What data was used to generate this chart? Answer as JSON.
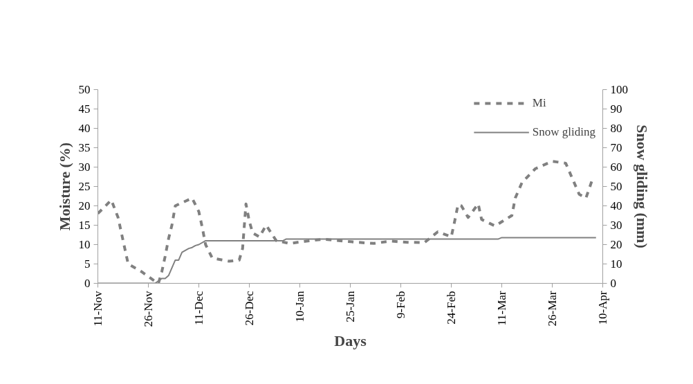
{
  "chart_data": {
    "type": "line",
    "xlabel": "Days",
    "ylabel": "Moisture (%)",
    "y2label": "Snow gliding (mm)",
    "categories": [
      "11-Nov",
      null,
      null,
      null,
      null,
      null,
      null,
      null,
      null,
      null,
      null,
      null,
      null,
      null,
      null,
      "26-Nov",
      null,
      null,
      null,
      null,
      null,
      null,
      null,
      null,
      null,
      null,
      null,
      null,
      null,
      null,
      "11-Dec",
      null,
      null,
      null,
      null,
      null,
      null,
      null,
      null,
      null,
      null,
      null,
      null,
      null,
      null,
      "26-Dec",
      null,
      null,
      null,
      null,
      null,
      null,
      null,
      null,
      null,
      null,
      null,
      null,
      null,
      null,
      "10-Jan",
      null,
      null,
      null,
      null,
      null,
      null,
      null,
      null,
      null,
      null,
      null,
      null,
      null,
      null,
      "25-Jan",
      null,
      null,
      null,
      null,
      null,
      null,
      null,
      null,
      null,
      null,
      null,
      null,
      null,
      null,
      "9-Feb",
      null,
      null,
      null,
      null,
      null,
      null,
      null,
      null,
      null,
      null,
      null,
      null,
      null,
      null,
      "24-Feb",
      null,
      null,
      null,
      null,
      null,
      null,
      null,
      null,
      null,
      null,
      null,
      null,
      null,
      null,
      "11-Mar",
      null,
      null,
      null,
      null,
      null,
      null,
      null,
      null,
      null,
      null,
      null,
      null,
      null,
      null,
      "26-Mar",
      null,
      null,
      null,
      null,
      null,
      null,
      null,
      null,
      null,
      null,
      null,
      null,
      null,
      null,
      "10-Apr"
    ],
    "ylim": [
      0,
      50
    ],
    "yticks": [
      0,
      5,
      10,
      15,
      20,
      25,
      30,
      35,
      40,
      45,
      50
    ],
    "y2lim": [
      0,
      100
    ],
    "y2ticks": [
      0,
      10,
      20,
      30,
      40,
      50,
      60,
      70,
      80,
      90,
      100
    ],
    "legend": "top right",
    "series": [
      {
        "name": "Mi",
        "color": "#808080",
        "line_style": "dashed",
        "values": [
          18,
          null,
          null,
          null,
          21.5,
          null,
          17,
          13,
          9,
          5,
          null,
          null,
          null,
          3,
          null,
          null,
          null,
          0.5,
          0,
          3,
          7,
          11.5,
          15,
          20,
          null,
          null,
          null,
          null,
          22,
          null,
          18.5,
          14.5,
          10,
          null,
          6.5,
          null,
          null,
          null,
          null,
          5.7,
          null,
          null,
          6,
          9,
          20.5,
          16,
          13,
          null,
          12,
          null,
          15,
          null,
          null,
          11,
          null,
          null,
          null,
          10.3,
          null,
          null,
          null,
          null,
          10.9,
          null,
          null,
          null,
          null,
          11.4,
          null,
          null,
          null,
          null,
          11,
          null,
          null,
          null,
          null,
          10.6,
          null,
          null,
          null,
          null,
          10.3,
          null,
          null,
          null,
          null,
          10.9,
          null,
          null,
          null,
          null,
          10.6,
          null,
          null,
          null,
          null,
          10.5,
          null,
          null,
          null,
          13.3,
          null,
          null,
          null,
          12,
          16,
          20.3,
          20,
          null,
          17,
          null,
          null,
          20.5,
          16.5,
          null,
          null,
          null,
          14.8,
          null,
          null,
          null,
          null,
          17.5,
          22,
          null,
          26,
          null,
          null,
          null,
          29.6,
          null,
          null,
          null,
          null,
          31.5,
          null,
          null,
          null,
          31,
          null,
          27,
          null,
          23,
          null,
          22,
          null,
          27,
          null,
          null,
          null
        ]
      },
      {
        "name": "Snow gliding",
        "color": "#808080",
        "line_style": "solid",
        "axis": "y2",
        "values": [
          0,
          null,
          null,
          null,
          null,
          null,
          null,
          null,
          null,
          null,
          null,
          null,
          null,
          null,
          null,
          null,
          null,
          0,
          null,
          2.5,
          2.5,
          4,
          null,
          12,
          12,
          16,
          null,
          18,
          18.5,
          19.5,
          20,
          null,
          22,
          null,
          null,
          null,
          null,
          null,
          null,
          null,
          null,
          null,
          null,
          null,
          null,
          null,
          null,
          null,
          null,
          null,
          null,
          null,
          null,
          null,
          null,
          22,
          22.9,
          null,
          null,
          null,
          null,
          null,
          null,
          null,
          null,
          null,
          null,
          null,
          null,
          null,
          null,
          null,
          null,
          null,
          null,
          null,
          null,
          null,
          null,
          null,
          null,
          null,
          null,
          null,
          null,
          null,
          null,
          null,
          null,
          null,
          null,
          null,
          null,
          null,
          null,
          null,
          null,
          null,
          null,
          null,
          null,
          null,
          null,
          null,
          null,
          null,
          null,
          null,
          null,
          null,
          null,
          null,
          null,
          null,
          null,
          null,
          null,
          null,
          null,
          22.9,
          23.6,
          null,
          null,
          null,
          null,
          null,
          null,
          null,
          null,
          null,
          null,
          null,
          null,
          null,
          null,
          null,
          null,
          null,
          null,
          null,
          null,
          null,
          null,
          null,
          null,
          null,
          null,
          null,
          23.6,
          null,
          null
        ]
      }
    ]
  }
}
